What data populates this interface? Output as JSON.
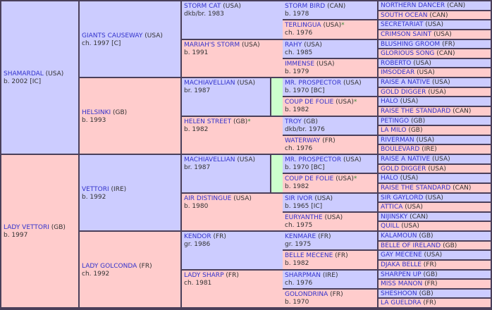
{
  "gen1": [
    {
      "name": "SHAMARDAL",
      "country": "(USA)",
      "info": "b. 2002 [IC]",
      "sex": "m"
    },
    {
      "name": "LADY VETTORI",
      "country": "(GB)",
      "info": "b. 1997",
      "sex": "f"
    }
  ],
  "gen2": [
    {
      "name": "GIANTS CAUSEWAY",
      "country": "(USA)",
      "info": "ch. 1997 [C]",
      "sex": "m"
    },
    {
      "name": "HELSINKI",
      "country": "(GB)",
      "info": "b. 1993",
      "sex": "f"
    },
    {
      "name": "VETTORI",
      "country": "(IRE)",
      "info": "b. 1992",
      "sex": "m"
    },
    {
      "name": "LADY GOLCONDA",
      "country": "(FR)",
      "info": "ch. 1992",
      "sex": "f"
    }
  ],
  "gen3": [
    {
      "name": "STORM CAT",
      "country": "(USA)",
      "info": "dkb/br. 1983",
      "sex": "m"
    },
    {
      "name": "MARIAH'S STORM",
      "country": "(USA)",
      "info": "b. 1991",
      "sex": "f"
    },
    {
      "name": "MACHIAVELLIAN",
      "country": "(USA)",
      "info": "br. 1987",
      "sex": "m"
    },
    {
      "name": "HELEN STREET",
      "country": "(GB)",
      "info": "b. 1982",
      "sex": "f",
      "star": "*"
    },
    {
      "name": "MACHIAVELLIAN",
      "country": "(USA)",
      "info": "br. 1987",
      "sex": "m"
    },
    {
      "name": "AIR DISTINGUE",
      "country": "(USA)",
      "info": "b. 1980",
      "sex": "f"
    },
    {
      "name": "KENDOR",
      "country": "(FR)",
      "info": "gr. 1986",
      "sex": "m"
    },
    {
      "name": "LADY SHARP",
      "country": "(FR)",
      "info": "ch. 1981",
      "sex": "f"
    }
  ],
  "gen4": [
    {
      "name": "STORM BIRD",
      "country": "(CAN)",
      "info": "b. 1978",
      "sex": "m"
    },
    {
      "name": "TERLINGUA",
      "country": "(USA)",
      "info": "ch. 1976",
      "sex": "f",
      "star": "*"
    },
    {
      "name": "RAHY",
      "country": "(USA)",
      "info": "ch. 1985",
      "sex": "m"
    },
    {
      "name": "IMMENSE",
      "country": "(USA)",
      "info": "b. 1979",
      "sex": "f"
    },
    {
      "name": "MR. PROSPECTOR",
      "country": "(USA)",
      "info": "b. 1970 [BC]",
      "sex": "m"
    },
    {
      "name": "COUP DE FOLIE",
      "country": "(USA)",
      "info": "b. 1982",
      "sex": "f",
      "star": "*"
    },
    {
      "name": "TROY",
      "country": "(GB)",
      "info": "dkb/br. 1976",
      "sex": "m"
    },
    {
      "name": "WATERWAY",
      "country": "(FR)",
      "info": "ch. 1976",
      "sex": "f"
    },
    {
      "name": "MR. PROSPECTOR",
      "country": "(USA)",
      "info": "b. 1970 [BC]",
      "sex": "m"
    },
    {
      "name": "COUP DE FOLIE",
      "country": "(USA)",
      "info": "b. 1982",
      "sex": "f",
      "star": "*"
    },
    {
      "name": "SIR IVOR",
      "country": "(USA)",
      "info": "b. 1965 [IC]",
      "sex": "m"
    },
    {
      "name": "EURYANTHE",
      "country": "(USA)",
      "info": "ch. 1975",
      "sex": "f"
    },
    {
      "name": "KENMARE",
      "country": "(FR)",
      "info": "gr. 1975",
      "sex": "m"
    },
    {
      "name": "BELLE MECENE",
      "country": "(FR)",
      "info": "b. 1982",
      "sex": "f"
    },
    {
      "name": "SHARPMAN",
      "country": "(IRE)",
      "info": "ch. 1976",
      "sex": "m"
    },
    {
      "name": "GOLONDRINA",
      "country": "(FR)",
      "info": "b. 1970",
      "sex": "f"
    }
  ],
  "gen5": [
    {
      "name": "NORTHERN DANCER",
      "country": "(CAN)",
      "sex": "m"
    },
    {
      "name": "SOUTH OCEAN",
      "country": "(CAN)",
      "sex": "f"
    },
    {
      "name": "SECRETARIAT",
      "country": "(USA)",
      "sex": "m"
    },
    {
      "name": "CRIMSON SAINT",
      "country": "(USA)",
      "sex": "f"
    },
    {
      "name": "BLUSHING GROOM",
      "country": "(FR)",
      "sex": "m"
    },
    {
      "name": "GLORIOUS SONG",
      "country": "(CAN)",
      "sex": "f"
    },
    {
      "name": "ROBERTO",
      "country": "(USA)",
      "sex": "m"
    },
    {
      "name": "IMSODEAR",
      "country": "(USA)",
      "sex": "f"
    },
    {
      "name": "RAISE A NATIVE",
      "country": "(USA)",
      "sex": "m"
    },
    {
      "name": "GOLD DIGGER",
      "country": "(USA)",
      "sex": "f"
    },
    {
      "name": "HALO",
      "country": "(USA)",
      "sex": "m"
    },
    {
      "name": "RAISE THE STANDARD",
      "country": "(CAN)",
      "sex": "f"
    },
    {
      "name": "PETINGO",
      "country": "(GB)",
      "sex": "m"
    },
    {
      "name": "LA MILO",
      "country": "(GB)",
      "sex": "f"
    },
    {
      "name": "RIVERMAN",
      "country": "(USA)",
      "sex": "m"
    },
    {
      "name": "BOULEVARD",
      "country": "(IRE)",
      "sex": "f"
    },
    {
      "name": "RAISE A NATIVE",
      "country": "(USA)",
      "sex": "m"
    },
    {
      "name": "GOLD DIGGER",
      "country": "(USA)",
      "sex": "f"
    },
    {
      "name": "HALO",
      "country": "(USA)",
      "sex": "m"
    },
    {
      "name": "RAISE THE STANDARD",
      "country": "(CAN)",
      "sex": "f"
    },
    {
      "name": "SIR GAYLORD",
      "country": "(USA)",
      "sex": "m"
    },
    {
      "name": "ATTICA",
      "country": "(USA)",
      "sex": "f"
    },
    {
      "name": "NIJINSKY",
      "country": "(CAN)",
      "sex": "m"
    },
    {
      "name": "QUILL",
      "country": "(USA)",
      "sex": "f"
    },
    {
      "name": "KALAMOUN",
      "country": "(GB)",
      "sex": "m"
    },
    {
      "name": "BELLE OF IRELAND",
      "country": "(GB)",
      "sex": "f"
    },
    {
      "name": "GAY MECENE",
      "country": "(USA)",
      "sex": "m"
    },
    {
      "name": "DJAKA BELLE",
      "country": "(FR)",
      "sex": "f"
    },
    {
      "name": "SHARPEN UP",
      "country": "(GB)",
      "sex": "m"
    },
    {
      "name": "MISS MANON",
      "country": "(FR)",
      "sex": "f"
    },
    {
      "name": "SHESHOON",
      "country": "(GB)",
      "sex": "m"
    },
    {
      "name": "LA GUELDRA",
      "country": "(FR)",
      "sex": "f"
    }
  ],
  "colors": {
    "male": "#ccccff",
    "female": "#ffcccc",
    "inbred": "#ccffcc",
    "link": "#3333cc",
    "border": "#4a3f5a"
  }
}
